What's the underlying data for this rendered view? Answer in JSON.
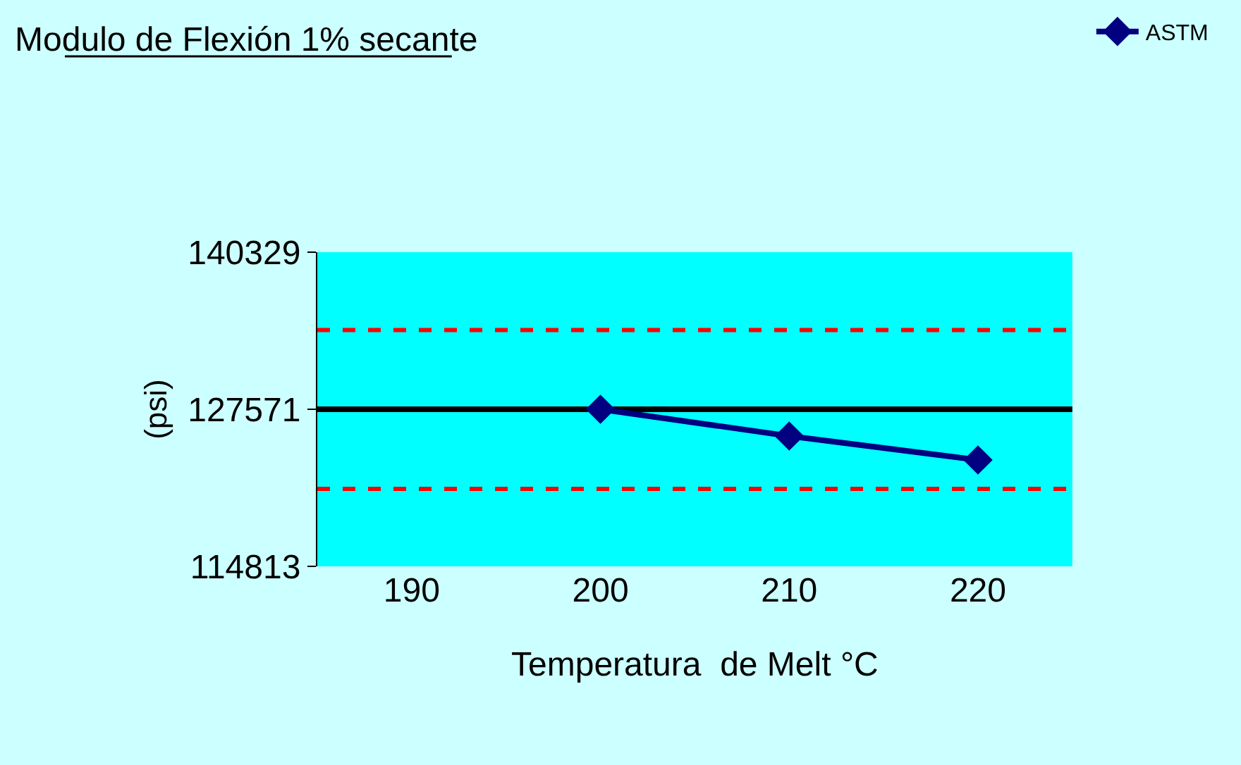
{
  "chart_data": {
    "type": "line",
    "title": "Modulo de Flexión 1% secante",
    "xlabel": "Temperatura  de Melt °C",
    "ylabel": "(psi)",
    "categories": [
      "190",
      "200",
      "210",
      "220"
    ],
    "series": [
      {
        "name": "ASTM",
        "color": "#000080",
        "values": [
          null,
          127571,
          125400,
          123450
        ]
      }
    ],
    "ylim": [
      114813,
      140329
    ],
    "yticks": [
      114813,
      127571,
      140329
    ],
    "ref_lines": [
      {
        "axis": "y",
        "value": 127571,
        "color": "#000000",
        "line_style": "solid"
      },
      {
        "axis": "y",
        "value": 134000,
        "color": "#ff0000",
        "line_style": "dashed"
      },
      {
        "axis": "y",
        "value": 121100,
        "color": "#ff0000",
        "line_style": "dashed"
      }
    ],
    "marker": "diamond",
    "line_style": "solid",
    "grid": false,
    "legend": "top right"
  }
}
